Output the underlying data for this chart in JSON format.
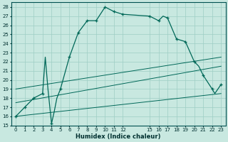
{
  "xlabel": "Humidex (Indice chaleur)",
  "bg_color": "#c8e8e0",
  "grid_color": "#9ecec4",
  "line_color": "#006858",
  "xlim": [
    -0.5,
    23.5
  ],
  "ylim": [
    15,
    28.5
  ],
  "xticks": [
    0,
    1,
    2,
    3,
    4,
    5,
    6,
    7,
    8,
    9,
    10,
    11,
    12,
    15,
    16,
    17,
    18,
    19,
    20,
    21,
    22,
    23
  ],
  "yticks": [
    15,
    16,
    17,
    18,
    19,
    20,
    21,
    22,
    23,
    24,
    25,
    26,
    27,
    28
  ],
  "main_x": [
    0,
    1,
    2,
    3,
    3.3,
    3.6,
    4,
    4.3,
    4.6,
    5,
    6,
    7,
    8,
    9,
    10,
    11,
    12,
    15,
    16,
    16.5,
    17,
    18,
    19,
    20,
    20.5,
    21,
    22,
    22.3,
    23
  ],
  "main_y": [
    16,
    17,
    18,
    18.5,
    22.5,
    19,
    15.2,
    16.5,
    18.0,
    19.0,
    22.5,
    25.2,
    26.5,
    26.5,
    28,
    27.5,
    27.2,
    27.0,
    26.5,
    27.0,
    26.8,
    24.5,
    24.2,
    22.0,
    21.5,
    20.5,
    19.0,
    18.5,
    19.5
  ],
  "markers_x": [
    0,
    1,
    2,
    3,
    4,
    5,
    6,
    7,
    8,
    9,
    10,
    11,
    12,
    15,
    16,
    17,
    18,
    19,
    20,
    21,
    22,
    23
  ],
  "markers_y": [
    16,
    17,
    18,
    18.5,
    15.2,
    19.0,
    22.5,
    25.2,
    26.5,
    26.5,
    28.0,
    27.5,
    27.2,
    27.0,
    26.5,
    26.8,
    24.5,
    24.2,
    22.0,
    20.5,
    19.0,
    19.5
  ],
  "line1_x": [
    0,
    23
  ],
  "line1_y": [
    16.0,
    18.5
  ],
  "line2_x": [
    0,
    23
  ],
  "line2_y": [
    17.5,
    21.5
  ],
  "line3_x": [
    0,
    23
  ],
  "line3_y": [
    19.0,
    22.5
  ]
}
